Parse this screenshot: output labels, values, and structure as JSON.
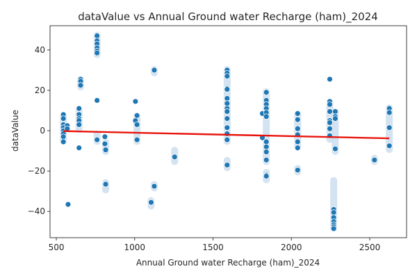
{
  "chart_data": {
    "type": "scatter",
    "title": "dataValue vs Annual Ground water Recharge (ham)_2024",
    "xlabel": "Annual Ground water Recharge (ham)_2024",
    "ylabel": "dataValue",
    "xlim": [
      460,
      2735
    ],
    "ylim": [
      -53,
      52
    ],
    "xticks": [
      500,
      1000,
      1500,
      2000,
      2500
    ],
    "xtick_labels": [
      "500",
      "1000",
      "1500",
      "2000",
      "2500"
    ],
    "yticks": [
      -40,
      -20,
      0,
      20,
      40
    ],
    "ytick_labels": [
      "−40",
      "−20",
      "0",
      "20",
      "40"
    ],
    "grid": false,
    "colors": {
      "points": "#1f77b4",
      "halo": "#c6d9ec",
      "regression": "#e8140c"
    },
    "regression": {
      "x": [
        545,
        2625
      ],
      "y": [
        -0.2,
        -3.8
      ]
    },
    "points": [
      {
        "x": 545,
        "y": 8
      },
      {
        "x": 545,
        "y": 6
      },
      {
        "x": 545,
        "y": 3
      },
      {
        "x": 545,
        "y": 1.5
      },
      {
        "x": 545,
        "y": 0
      },
      {
        "x": 545,
        "y": -1.5
      },
      {
        "x": 545,
        "y": -3
      },
      {
        "x": 545,
        "y": -5.5
      },
      {
        "x": 570,
        "y": 2.5
      },
      {
        "x": 570,
        "y": 1
      },
      {
        "x": 575,
        "y": -36.5
      },
      {
        "x": 645,
        "y": 11
      },
      {
        "x": 645,
        "y": 8
      },
      {
        "x": 645,
        "y": 6
      },
      {
        "x": 645,
        "y": 5
      },
      {
        "x": 645,
        "y": 3
      },
      {
        "x": 645,
        "y": -8.5
      },
      {
        "x": 655,
        "y": 25.5
      },
      {
        "x": 655,
        "y": 24.5
      },
      {
        "x": 655,
        "y": 22.5
      },
      {
        "x": 760,
        "y": 47
      },
      {
        "x": 760,
        "y": 44.5
      },
      {
        "x": 760,
        "y": 43
      },
      {
        "x": 760,
        "y": 41
      },
      {
        "x": 760,
        "y": 39.5
      },
      {
        "x": 760,
        "y": 38.5
      },
      {
        "x": 760,
        "y": 15
      },
      {
        "x": 760,
        "y": -4.5
      },
      {
        "x": 810,
        "y": -3
      },
      {
        "x": 810,
        "y": -6.5
      },
      {
        "x": 815,
        "y": -9.5
      },
      {
        "x": 815,
        "y": -26.5
      },
      {
        "x": 1005,
        "y": 14.5
      },
      {
        "x": 1005,
        "y": 5
      },
      {
        "x": 1015,
        "y": 7.5
      },
      {
        "x": 1015,
        "y": 3
      },
      {
        "x": 1015,
        "y": -4.5
      },
      {
        "x": 1105,
        "y": -35.5
      },
      {
        "x": 1125,
        "y": 30
      },
      {
        "x": 1125,
        "y": -27.5
      },
      {
        "x": 1255,
        "y": -13
      },
      {
        "x": 1590,
        "y": 30
      },
      {
        "x": 1590,
        "y": 28.5
      },
      {
        "x": 1590,
        "y": 27
      },
      {
        "x": 1590,
        "y": 21
      },
      {
        "x": 1590,
        "y": 20.5
      },
      {
        "x": 1590,
        "y": 16
      },
      {
        "x": 1590,
        "y": 13.5
      },
      {
        "x": 1590,
        "y": 11
      },
      {
        "x": 1590,
        "y": 9.5
      },
      {
        "x": 1590,
        "y": 6
      },
      {
        "x": 1590,
        "y": 1.5
      },
      {
        "x": 1590,
        "y": -1.5
      },
      {
        "x": 1590,
        "y": -4.5
      },
      {
        "x": 1590,
        "y": -17
      },
      {
        "x": 1815,
        "y": 8.5
      },
      {
        "x": 1815,
        "y": -3.5
      },
      {
        "x": 1840,
        "y": 19
      },
      {
        "x": 1840,
        "y": 15
      },
      {
        "x": 1840,
        "y": 13
      },
      {
        "x": 1840,
        "y": 11
      },
      {
        "x": 1840,
        "y": 9
      },
      {
        "x": 1840,
        "y": 7
      },
      {
        "x": 1840,
        "y": -5.5
      },
      {
        "x": 1840,
        "y": -8
      },
      {
        "x": 1840,
        "y": -10.5
      },
      {
        "x": 1840,
        "y": -14.5
      },
      {
        "x": 1840,
        "y": -22
      },
      {
        "x": 1840,
        "y": -22.5
      },
      {
        "x": 2040,
        "y": 8.5
      },
      {
        "x": 2040,
        "y": 5.5
      },
      {
        "x": 2040,
        "y": 1
      },
      {
        "x": 2040,
        "y": -2
      },
      {
        "x": 2040,
        "y": -5.5
      },
      {
        "x": 2040,
        "y": -8.5
      },
      {
        "x": 2040,
        "y": -19.5
      },
      {
        "x": 2245,
        "y": 25.5
      },
      {
        "x": 2245,
        "y": 14.5
      },
      {
        "x": 2245,
        "y": 13
      },
      {
        "x": 2245,
        "y": 9.5
      },
      {
        "x": 2245,
        "y": 5
      },
      {
        "x": 2245,
        "y": 4
      },
      {
        "x": 2245,
        "y": 1
      },
      {
        "x": 2245,
        "y": -2.5
      },
      {
        "x": 2270,
        "y": -39
      },
      {
        "x": 2270,
        "y": -40.5
      },
      {
        "x": 2270,
        "y": -43
      },
      {
        "x": 2270,
        "y": -45
      },
      {
        "x": 2270,
        "y": -46.5
      },
      {
        "x": 2270,
        "y": -47.5
      },
      {
        "x": 2270,
        "y": -48.5
      },
      {
        "x": 2280,
        "y": 9.5
      },
      {
        "x": 2280,
        "y": 7
      },
      {
        "x": 2280,
        "y": 6
      },
      {
        "x": 2280,
        "y": -9
      },
      {
        "x": 2530,
        "y": -14.5
      },
      {
        "x": 2625,
        "y": 11
      },
      {
        "x": 2625,
        "y": 9
      },
      {
        "x": 2625,
        "y": 1.5
      },
      {
        "x": 2625,
        "y": -7.5
      }
    ],
    "bands": [
      {
        "x": 545,
        "y1": -6,
        "y2": 8
      },
      {
        "x": 645,
        "y1": 0,
        "y2": 11
      },
      {
        "x": 655,
        "y1": 21,
        "y2": 26
      },
      {
        "x": 760,
        "y1": 37,
        "y2": 48
      },
      {
        "x": 760,
        "y1": -6,
        "y2": -1
      },
      {
        "x": 815,
        "y1": -30,
        "y2": -25
      },
      {
        "x": 815,
        "y1": -11,
        "y2": -5
      },
      {
        "x": 1015,
        "y1": -6,
        "y2": 8
      },
      {
        "x": 1105,
        "y1": -38,
        "y2": -34
      },
      {
        "x": 1125,
        "y1": -29,
        "y2": -26
      },
      {
        "x": 1125,
        "y1": 28,
        "y2": 31
      },
      {
        "x": 1255,
        "y1": -16,
        "y2": -9
      },
      {
        "x": 1590,
        "y1": -19,
        "y2": -14
      },
      {
        "x": 1590,
        "y1": -6,
        "y2": 31
      },
      {
        "x": 1840,
        "y1": -25,
        "y2": -20
      },
      {
        "x": 1840,
        "y1": -16,
        "y2": 20
      },
      {
        "x": 2040,
        "y1": -21,
        "y2": -18
      },
      {
        "x": 2040,
        "y1": -9,
        "y2": 9
      },
      {
        "x": 2245,
        "y1": -5,
        "y2": 15
      },
      {
        "x": 2270,
        "y1": -49,
        "y2": -24
      },
      {
        "x": 2280,
        "y1": -11,
        "y2": 10
      },
      {
        "x": 2530,
        "y1": -16,
        "y2": -13
      },
      {
        "x": 2625,
        "y1": -10,
        "y2": 12
      }
    ]
  }
}
